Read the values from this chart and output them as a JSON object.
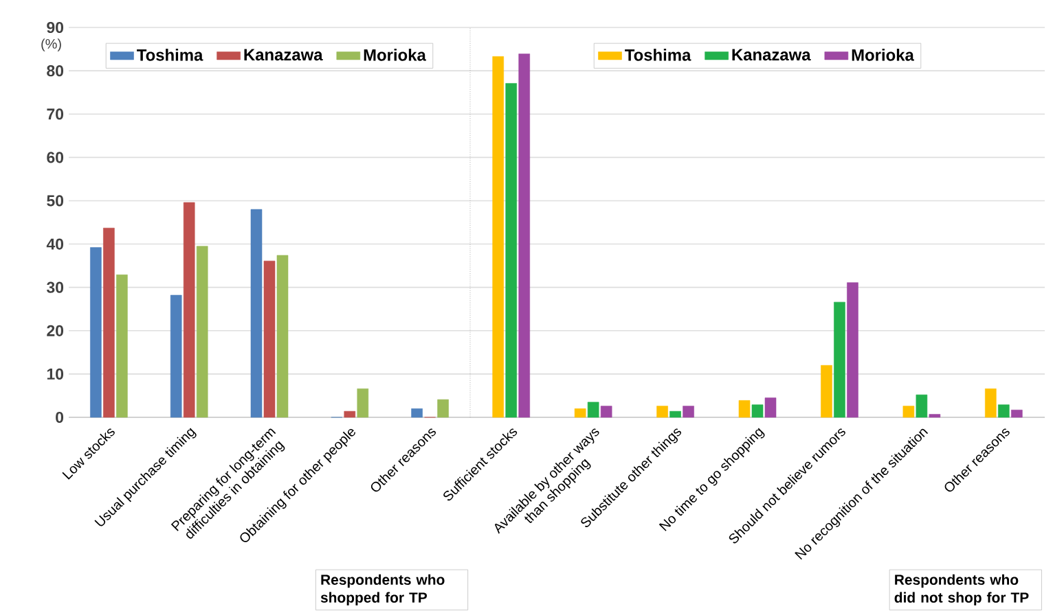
{
  "chart_data": [
    {
      "type": "bar",
      "ylabel": "(%)",
      "categories": [
        "Low stocks",
        "Usual purchase timing",
        "Preparing for long-term\ndifficulties in obtaining",
        "Obtaining for other people",
        "Other reasons"
      ],
      "series": [
        {
          "name": "Toshima",
          "color": "#4f81bd",
          "values": [
            39.2,
            28.2,
            48.0,
            0,
            2.0
          ]
        },
        {
          "name": "Kanazawa",
          "color": "#c0504d",
          "values": [
            43.7,
            49.6,
            36.1,
            1.4,
            0
          ]
        },
        {
          "name": "Morioka",
          "color": "#9bbb59",
          "values": [
            32.9,
            39.5,
            37.4,
            6.6,
            4.1
          ]
        }
      ],
      "ylim": [
        0,
        90
      ],
      "yticks": [
        0,
        10,
        20,
        30,
        40,
        50,
        60,
        70,
        80,
        90
      ],
      "grid": "y",
      "legend": "top",
      "annotations": [
        "Respondents who shopped for TP"
      ]
    },
    {
      "type": "bar",
      "categories": [
        "Sufficient stocks",
        "Available by other ways\nthan shopping",
        "Substitute other things",
        "No time to go shopping",
        "Should not believe rumors",
        "No recognition of the situation",
        "Other reasons"
      ],
      "series": [
        {
          "name": "Toshima",
          "color": "#ffc000",
          "values": [
            83.3,
            2.0,
            2.6,
            3.9,
            12.0,
            2.6,
            6.6
          ]
        },
        {
          "name": "Kanazawa",
          "color": "#22b14c",
          "values": [
            77.1,
            3.5,
            1.4,
            2.9,
            26.6,
            5.2,
            2.9
          ]
        },
        {
          "name": "Morioka",
          "color": "#9e48a3",
          "values": [
            83.9,
            2.6,
            2.6,
            4.5,
            31.1,
            0.7,
            1.7
          ]
        }
      ],
      "ylim": [
        0,
        90
      ],
      "yticks": [
        0,
        10,
        20,
        30,
        40,
        50,
        60,
        70,
        80,
        90
      ],
      "grid": "y",
      "legend": "top",
      "tick_labels": "x",
      "annotations": [
        "Respondents who did not shop for TP"
      ]
    }
  ]
}
